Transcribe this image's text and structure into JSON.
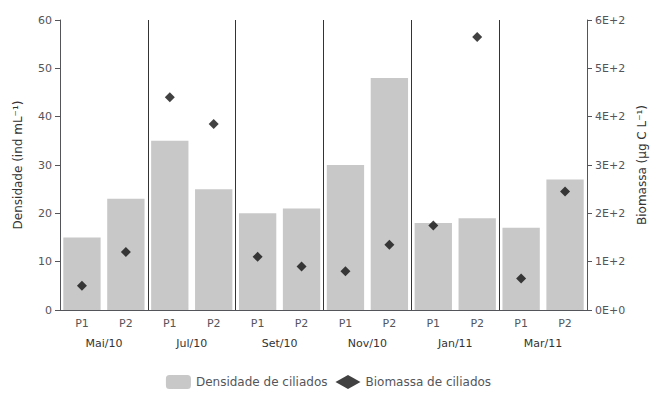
{
  "chart_data": {
    "type": "bar",
    "categories": [
      "P1",
      "P2",
      "P1",
      "P2",
      "P1",
      "P2",
      "P1",
      "P2",
      "P1",
      "P2",
      "P1",
      "P2"
    ],
    "annotations": [
      "Mai/10",
      "Jul/10",
      "Set/10",
      "Nov/10",
      "Jan/11",
      "Mar/11"
    ],
    "ylabel": "Densidade (ind mL⁻¹)",
    "y2label": "Biomassa (µg C L⁻¹)",
    "ylim": [
      0,
      60
    ],
    "yticks": [
      0,
      10,
      20,
      30,
      40,
      50,
      60
    ],
    "y2lim": [
      0,
      600
    ],
    "y2ticks": [
      {
        "value": 0,
        "label": "0E+0"
      },
      {
        "value": 100,
        "label": "1E+2"
      },
      {
        "value": 200,
        "label": "2E+2"
      },
      {
        "value": 300,
        "label": "3E+2"
      },
      {
        "value": 400,
        "label": "4E+2"
      },
      {
        "value": 500,
        "label": "5E+2"
      },
      {
        "value": 600,
        "label": "6E+2"
      }
    ],
    "grid": false,
    "legend": "bottom",
    "series": [
      {
        "name": "Densidade de ciliados",
        "type": "bar",
        "color": "#c8c8c8",
        "values": [
          15,
          23,
          35,
          25,
          20,
          21,
          30,
          48,
          18,
          19,
          17,
          27
        ]
      },
      {
        "name": "Biomassa de ciliados",
        "type": "scatter",
        "axis": "y2",
        "marker": "diamond",
        "color": "#111111",
        "values": [
          50,
          120,
          440,
          385,
          110,
          90,
          80,
          135,
          175,
          565,
          65,
          245
        ]
      }
    ]
  }
}
